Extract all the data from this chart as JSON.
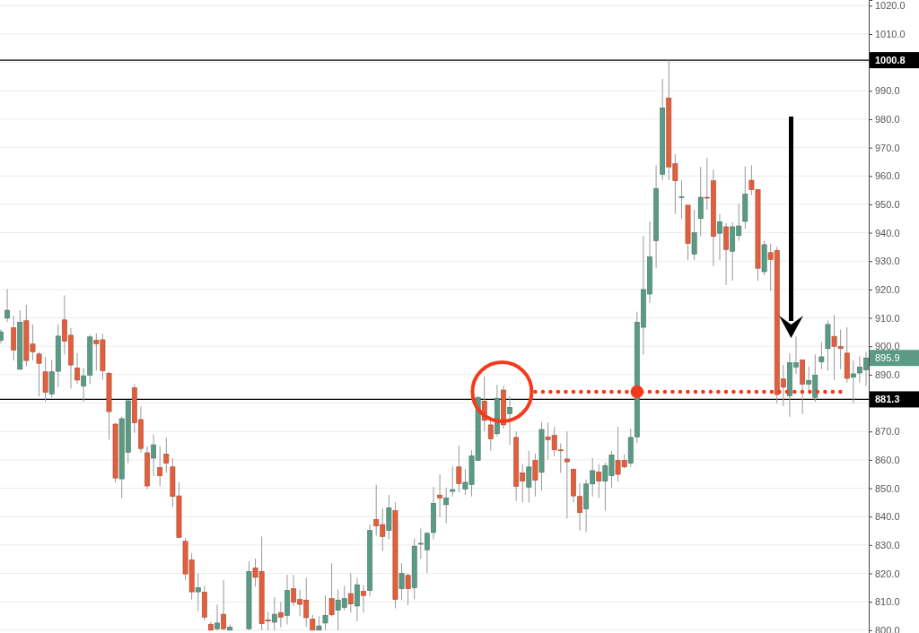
{
  "chart_data": {
    "type": "candlestick",
    "categories": [
      null,
      null,
      null,
      null,
      null,
      null,
      null,
      null,
      null,
      null,
      null,
      null,
      null,
      null,
      null,
      null,
      null,
      null,
      null,
      null,
      null,
      null,
      null,
      null,
      null,
      null,
      null,
      null,
      null,
      null,
      null,
      null,
      null,
      null,
      null,
      null,
      null,
      null,
      null,
      null,
      null,
      null,
      null,
      null,
      null,
      null,
      null,
      null,
      null,
      null,
      null,
      null,
      null,
      null,
      null,
      null,
      null,
      null,
      null,
      null,
      null,
      null,
      null,
      null,
      null,
      null,
      null,
      null,
      null,
      null,
      null,
      null,
      null,
      null,
      null,
      null,
      null,
      null,
      null,
      null,
      null,
      null,
      null,
      null,
      null,
      null,
      null,
      null,
      null,
      null,
      null,
      null,
      null,
      null,
      null,
      null,
      null,
      null,
      null,
      null,
      null,
      null,
      null,
      null,
      null,
      null,
      null,
      null,
      null,
      null,
      null,
      null,
      null,
      null,
      null,
      null,
      null,
      null,
      null,
      null,
      null,
      null,
      null,
      null,
      null,
      null,
      null,
      null,
      null,
      null,
      null,
      null,
      null,
      null,
      null,
      null,
      null
    ],
    "ohlc": [
      [
        902.1,
        906,
        901,
        905.1
      ],
      [
        909.9,
        920.2,
        908.5,
        912.7
      ],
      [
        906.5,
        910.8,
        895,
        898.7
      ],
      [
        891.9,
        912.7,
        891.9,
        908.5
      ],
      [
        909,
        914.6,
        892.9,
        895
      ],
      [
        900.8,
        907.7,
        895,
        898.1
      ],
      [
        897.3,
        898,
        882.3,
        894
      ],
      [
        891,
        896.3,
        880.4,
        883.8
      ],
      [
        883.2,
        895.2,
        882,
        891
      ],
      [
        891.2,
        907.7,
        885.6,
        903.6
      ],
      [
        909.3,
        917.9,
        897.1,
        901.8
      ],
      [
        903.9,
        906.5,
        885.1,
        893.4
      ],
      [
        892.4,
        897.6,
        886.7,
        888.1
      ],
      [
        886,
        892.4,
        880.4,
        889.6
      ],
      [
        889.8,
        904.1,
        886.7,
        903.3
      ],
      [
        902.1,
        904.6,
        891.4,
        900.9
      ],
      [
        902.3,
        904.4,
        888.2,
        891.4
      ],
      [
        890.5,
        891,
        867.1,
        877
      ],
      [
        872.6,
        873,
        852.1,
        853.6
      ],
      [
        853.3,
        875.2,
        846.5,
        874.5
      ],
      [
        862.7,
        881.1,
        858.8,
        880.8
      ],
      [
        885.4,
        886.7,
        869.5,
        873.1
      ],
      [
        874.2,
        878.8,
        862.5,
        864
      ],
      [
        862.5,
        864.8,
        849.7,
        850.8
      ],
      [
        860.6,
        869,
        854.4,
        865.3
      ],
      [
        857.3,
        864.8,
        850.7,
        854.4
      ],
      [
        862,
        867.9,
        855.4,
        858.8
      ],
      [
        857.5,
        860.6,
        843.4,
        847.1
      ],
      [
        847.3,
        852.1,
        832.3,
        832.7
      ],
      [
        831.3,
        832.5,
        817.6,
        819.8
      ],
      [
        824.7,
        827.1,
        810.8,
        813.5
      ],
      [
        813.5,
        820,
        806.7,
        815
      ],
      [
        813.4,
        815.6,
        803.3,
        804.6
      ],
      [
        802,
        803,
        800,
        800
      ],
      [
        800.5,
        809,
        800,
        802.5
      ],
      [
        805.6,
        817.6,
        800,
        800.5
      ],
      [
        800,
        802,
        800,
        801
      ],
      null,
      null,
      [
        800.5,
        824.2,
        800,
        820.7
      ],
      [
        821.9,
        825.2,
        815.3,
        818.6
      ],
      [
        820.7,
        833,
        800,
        802.3
      ],
      [
        803.6,
        806.5,
        800,
        803.2
      ],
      [
        802.8,
        811.6,
        800,
        805.6
      ],
      [
        806.2,
        810,
        801,
        804.6
      ],
      [
        805.2,
        819.5,
        802,
        814
      ],
      [
        814.6,
        819.5,
        808.5,
        809.8
      ],
      [
        810.8,
        814.3,
        804.9,
        809.1
      ],
      [
        810.6,
        818.4,
        801.2,
        804.4
      ],
      [
        803.9,
        805.4,
        800,
        800
      ],
      [
        800,
        804.9,
        800,
        801.5
      ],
      [
        802.5,
        812.2,
        800,
        805.2
      ],
      [
        811.1,
        823.6,
        804.9,
        805.4
      ],
      [
        807,
        814.3,
        800,
        810.6
      ],
      [
        808,
        815.6,
        807,
        811.1
      ],
      [
        812.9,
        820,
        806.2,
        809.2
      ],
      [
        808.5,
        818.4,
        803.1,
        816
      ],
      [
        813.7,
        815.8,
        806.2,
        812.2
      ],
      [
        814,
        837.2,
        811.9,
        835.1
      ],
      [
        839,
        851.2,
        833.3,
        836.7
      ],
      [
        837.2,
        842.9,
        827.8,
        833
      ],
      [
        835.1,
        847.6,
        832,
        843.1
      ],
      [
        842.1,
        845,
        807.7,
        810.8
      ],
      [
        814.6,
        823.6,
        810.6,
        820
      ],
      [
        819.3,
        820,
        808.8,
        814.6
      ],
      [
        815,
        832.3,
        810.8,
        829.6
      ],
      [
        830.5,
        835.8,
        825.2,
        830.6
      ],
      [
        828.3,
        834.6,
        820.2,
        834.1
      ],
      [
        834.4,
        850.4,
        832,
        844.7
      ],
      [
        847.6,
        854.9,
        839.8,
        846.6
      ],
      [
        844.2,
        850.2,
        837.7,
        846.6
      ],
      [
        848.9,
        857.7,
        847.1,
        849.5
      ],
      [
        857.5,
        865,
        848.6,
        851.6
      ],
      [
        849.7,
        856.7,
        847.6,
        852.1
      ],
      [
        851.3,
        863.4,
        847.1,
        861.4
      ],
      [
        859.8,
        882.5,
        859.6,
        882
      ],
      [
        880.7,
        889.3,
        870,
        873.9
      ],
      [
        872.3,
        874.4,
        863.2,
        867.4
      ],
      [
        869.2,
        886.4,
        868.4,
        881.7
      ],
      [
        884.6,
        886.1,
        871,
        872.3
      ],
      [
        876.3,
        882.5,
        865.3,
        878.5
      ],
      [
        867.9,
        870,
        845.5,
        850.7
      ],
      [
        855.4,
        858.5,
        845,
        852.5
      ],
      [
        850.4,
        863.2,
        845,
        857.5
      ],
      [
        859.8,
        862.2,
        847.1,
        852.8
      ],
      [
        855.6,
        873.3,
        849.2,
        870.7
      ],
      [
        868.1,
        873.1,
        860.1,
        867.1
      ],
      [
        868.6,
        871.6,
        861.2,
        863.5
      ],
      [
        863.5,
        865.8,
        855.4,
        863.3
      ],
      [
        860.3,
        870,
        839.3,
        859.3
      ],
      [
        856.7,
        857,
        845,
        847.3
      ],
      [
        847.1,
        851.8,
        835.1,
        841.4
      ],
      [
        842.7,
        853.1,
        834.6,
        851.5
      ],
      [
        851.5,
        860.6,
        847.1,
        856.2
      ],
      [
        855.7,
        858.5,
        846.6,
        852.5
      ],
      [
        852.5,
        859.1,
        842.1,
        858
      ],
      [
        854.4,
        863.2,
        850.2,
        861.7
      ],
      [
        859.8,
        871.6,
        852.3,
        854.9
      ],
      [
        859.8,
        861.9,
        857,
        857.5
      ],
      [
        858.8,
        871,
        857.5,
        867.9
      ],
      [
        868.1,
        912.2,
        866,
        908.5
      ],
      [
        906.7,
        938.8,
        897.1,
        920
      ],
      [
        918.4,
        944,
        915.3,
        931.5
      ],
      [
        937.2,
        963.8,
        927.5,
        955.6
      ],
      [
        960.6,
        994.2,
        958.5,
        984
      ],
      [
        987.5,
        1000.8,
        958.5,
        963.2
      ],
      [
        964.3,
        967.7,
        946.6,
        958.3
      ],
      [
        952.6,
        958.5,
        945,
        952.7
      ],
      [
        949.7,
        949.7,
        930.4,
        936.2
      ],
      [
        932.5,
        948.1,
        930.4,
        940
      ],
      [
        945,
        963.2,
        938.8,
        952.5
      ],
      [
        952.5,
        966.4,
        948.1,
        952.3
      ],
      [
        958.3,
        962.2,
        928.3,
        938.7
      ],
      [
        939.8,
        946.6,
        930.4,
        943.9
      ],
      [
        942.1,
        943.4,
        921.6,
        934.1
      ],
      [
        933.5,
        943.8,
        923.1,
        942.1
      ],
      [
        939,
        950.2,
        937.2,
        942.4
      ],
      [
        944,
        963.4,
        941.4,
        953.6
      ],
      [
        958.5,
        963.8,
        953.3,
        955.2
      ],
      [
        955.2,
        955.4,
        923.1,
        927.5
      ],
      [
        926.3,
        937.2,
        925,
        935.8
      ],
      [
        933,
        936.2,
        919.5,
        930.6
      ],
      [
        933.8,
        935.1,
        879.9,
        883
      ],
      [
        888.5,
        893.4,
        878.9,
        885.6
      ],
      [
        882.5,
        897.6,
        875.2,
        894.2
      ],
      [
        892.7,
        903.5,
        890.3,
        894.2
      ],
      [
        895.2,
        895.2,
        876.2,
        886.7
      ],
      [
        886.7,
        892.9,
        883.5,
        887.9
      ],
      [
        882,
        897.1,
        880.4,
        889.8
      ],
      [
        894.5,
        901.5,
        891.9,
        896.3
      ],
      [
        899.2,
        909.1,
        891.4,
        907.7
      ],
      [
        903.5,
        911.1,
        888.2,
        900
      ],
      [
        899.9,
        905.9,
        891.9,
        899.2
      ],
      [
        897.6,
        906.7,
        887.2,
        888.7
      ],
      [
        889.1,
        895,
        879.9,
        890.3
      ],
      [
        890.6,
        896.6,
        887.2,
        892.7
      ],
      [
        891.7,
        898.1,
        886.1,
        895.9
      ]
    ],
    "colors": [
      "#5b9a84",
      "#5b9a84",
      "#e0603e",
      "#5b9a84",
      "#e0603e",
      "#e0603e",
      "#e0603e",
      "#e0603e",
      "#5b9a84",
      "#5b9a84",
      "#e0603e",
      "#e0603e",
      "#e0603e",
      "#5b9a84",
      "#5b9a84",
      "#e0603e",
      "#e0603e",
      "#e0603e",
      "#e0603e",
      "#5b9a84",
      "#5b9a84",
      "#e0603e",
      "#e0603e",
      "#e0603e",
      "#5b9a84",
      "#e0603e",
      "#e0603e",
      "#e0603e",
      "#e0603e",
      "#e0603e",
      "#e0603e",
      "#5b9a84",
      "#e0603e",
      "#e0603e",
      "#5b9a84",
      "#e0603e",
      "#5b9a84",
      null,
      null,
      "#5b9a84",
      "#e0603e",
      "#e0603e",
      "#e0603e",
      "#5b9a84",
      "#e0603e",
      "#5b9a84",
      "#e0603e",
      "#e0603e",
      "#e0603e",
      "#e0603e",
      "#5b9a84",
      "#5b9a84",
      "#e0603e",
      "#5b9a84",
      "#5b9a84",
      "#e0603e",
      "#5b9a84",
      "#e0603e",
      "#5b9a84",
      "#e0603e",
      "#e0603e",
      "#5b9a84",
      "#e0603e",
      "#5b9a84",
      "#e0603e",
      "#5b9a84",
      "#5b9a84",
      "#5b9a84",
      "#5b9a84",
      "#e0603e",
      "#5b9a84",
      "#5b9a84",
      "#e0603e",
      "#5b9a84",
      "#5b9a84",
      "#5b9a84",
      "#e0603e",
      "#e0603e",
      "#5b9a84",
      "#e0603e",
      "#5b9a84",
      "#e0603e",
      "#e0603e",
      "#5b9a84",
      "#e0603e",
      "#5b9a84",
      "#e0603e",
      "#e0603e",
      "#e0603e",
      "#e0603e",
      "#e0603e",
      "#e0603e",
      "#5b9a84",
      "#5b9a84",
      "#e0603e",
      "#5b9a84",
      "#5b9a84",
      "#e0603e",
      "#e0603e",
      "#5b9a84",
      "#5b9a84",
      "#5b9a84",
      "#5b9a84",
      "#5b9a84",
      "#5b9a84",
      "#e0603e",
      "#e0603e",
      "#5b9a84",
      "#e0603e",
      "#5b9a84",
      "#5b9a84",
      "#e0603e",
      "#e0603e",
      "#5b9a84",
      "#e0603e",
      "#5b9a84",
      "#5b9a84",
      "#5b9a84",
      "#e0603e",
      "#e0603e",
      "#5b9a84",
      "#e0603e",
      "#e0603e",
      "#e0603e",
      "#5b9a84",
      "#5b9a84",
      "#e0603e",
      "#5b9a84",
      "#5b9a84",
      "#5b9a84",
      "#5b9a84",
      "#e0603e",
      "#e0603e",
      "#e0603e",
      "#5b9a84",
      "#5b9a84",
      "#5b9a84"
    ],
    "series": [
      {
        "type": "line",
        "color": "#f5391b",
        "line_style": "dotted",
        "values": [
          null,
          null,
          null,
          null,
          null,
          null,
          null,
          null,
          null,
          null,
          null,
          null,
          null,
          null,
          null,
          null,
          null,
          null,
          null,
          null,
          null,
          null,
          null,
          null,
          null,
          null,
          null,
          null,
          null,
          null,
          null,
          null,
          null,
          null,
          null,
          null,
          null,
          null,
          null,
          null,
          null,
          null,
          null,
          null,
          null,
          null,
          null,
          null,
          null,
          null,
          null,
          null,
          null,
          null,
          null,
          null,
          null,
          null,
          null,
          null,
          null,
          null,
          null,
          null,
          null,
          null,
          null,
          null,
          null,
          null,
          null,
          null,
          null,
          null,
          null,
          null,
          null,
          null,
          null,
          null,
          null,
          null,
          null,
          null,
          884,
          884,
          884,
          884,
          884,
          884,
          884,
          884,
          884,
          884,
          884,
          884,
          884,
          884,
          884,
          884,
          884,
          884,
          884,
          884,
          884,
          884,
          884,
          884,
          884,
          884,
          884,
          884,
          884,
          884,
          884,
          884,
          884,
          884,
          884,
          884,
          884,
          884,
          884,
          884,
          884,
          884,
          884,
          884,
          884,
          884,
          884,
          884,
          884,
          884,
          null,
          null,
          null
        ]
      },
      {
        "type": "scatter",
        "color": "#f5391b",
        "marker": "circle",
        "values": [
          null,
          null,
          null,
          null,
          null,
          null,
          null,
          null,
          null,
          null,
          null,
          null,
          null,
          null,
          null,
          null,
          null,
          null,
          null,
          null,
          null,
          null,
          null,
          null,
          null,
          null,
          null,
          null,
          null,
          null,
          null,
          null,
          null,
          null,
          null,
          null,
          null,
          null,
          null,
          null,
          null,
          null,
          null,
          null,
          null,
          null,
          null,
          null,
          null,
          null,
          null,
          null,
          null,
          null,
          null,
          null,
          null,
          null,
          null,
          null,
          null,
          null,
          null,
          null,
          null,
          null,
          null,
          null,
          null,
          null,
          null,
          null,
          null,
          null,
          null,
          null,
          null,
          null,
          null,
          null,
          null,
          null,
          null,
          null,
          null,
          null,
          null,
          null,
          null,
          null,
          null,
          null,
          null,
          null,
          null,
          null,
          null,
          null,
          null,
          null,
          884,
          null,
          null,
          null,
          null,
          null,
          null,
          null,
          null,
          null,
          null,
          null,
          null,
          null,
          null,
          null,
          null,
          null,
          null,
          null,
          null,
          null,
          null,
          null,
          null,
          null,
          null,
          null,
          null,
          null,
          null,
          null,
          null,
          null,
          null,
          null,
          null
        ]
      }
    ],
    "ylim": [
      799,
      1022
    ],
    "yticks": [
      {
        "value": 800,
        "label": "800.0"
      },
      {
        "value": 810,
        "label": "810.0"
      },
      {
        "value": 820,
        "label": "820.0"
      },
      {
        "value": 830,
        "label": "830.0"
      },
      {
        "value": 840,
        "label": "840.0"
      },
      {
        "value": 850,
        "label": "850.0"
      },
      {
        "value": 860,
        "label": "860.0"
      },
      {
        "value": 870,
        "label": "870.0"
      },
      {
        "value": 880,
        "label": null
      },
      {
        "value": 890,
        "label": "890.0"
      },
      {
        "value": 900,
        "label": "900.0"
      },
      {
        "value": 910,
        "label": "910.0"
      },
      {
        "value": 920,
        "label": "920.0"
      },
      {
        "value": 930,
        "label": "930.0"
      },
      {
        "value": 940,
        "label": "940.0"
      },
      {
        "value": 950,
        "label": "950.0"
      },
      {
        "value": 960,
        "label": "960.0"
      },
      {
        "value": 970,
        "label": "970.0"
      },
      {
        "value": 980,
        "label": "980.0"
      },
      {
        "value": 990,
        "label": "990.0"
      },
      {
        "value": 1000,
        "label": null
      },
      {
        "value": 1010,
        "label": "1010.0"
      },
      {
        "value": 1020,
        "label": "1020.0"
      }
    ],
    "ref_lines": [
      {
        "axis": "y",
        "value": 1000.8,
        "label": "1000.8",
        "color": "#000000"
      },
      {
        "axis": "y",
        "value": 881.3,
        "label": "881.3",
        "color": "#000000"
      }
    ],
    "annotations": [
      "895.9"
    ],
    "grid": "y",
    "tick_labels": "y"
  }
}
